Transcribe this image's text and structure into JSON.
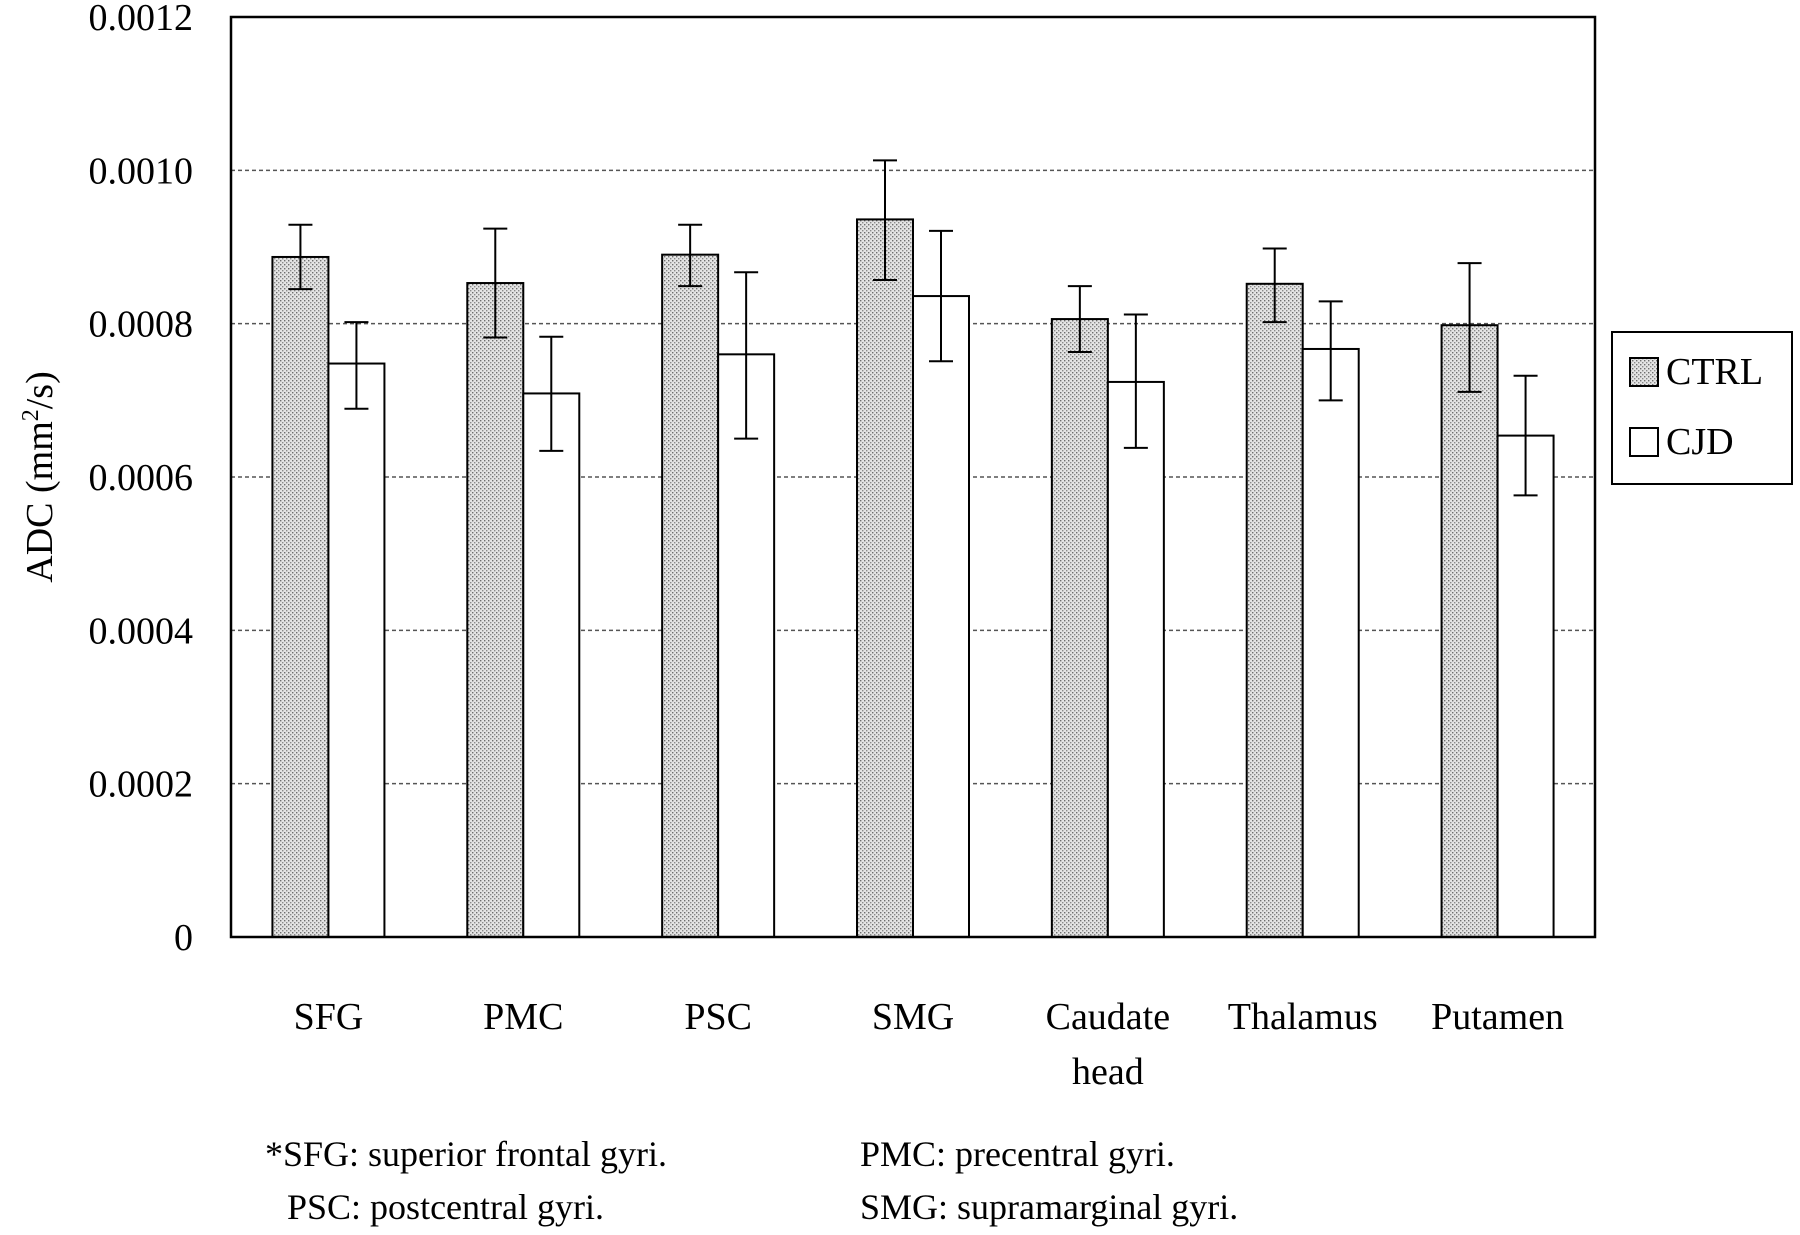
{
  "chart_data": {
    "type": "bar",
    "ylabel": {
      "prefix": "ADC (mm",
      "sup": "2",
      "suffix": "/s)"
    },
    "ylim": [
      0,
      0.0012
    ],
    "yticks": [
      "0",
      "0.0002",
      "0.0004",
      "0.0006",
      "0.0008",
      "0.0010",
      "0.0012"
    ],
    "ytick_values": [
      0,
      0.0002,
      0.0004,
      0.0006,
      0.0008,
      0.001,
      0.0012
    ],
    "grid": "horizontal dashed",
    "categories": [
      [
        "SFG"
      ],
      [
        "PMC"
      ],
      [
        "PSC"
      ],
      [
        "SMG"
      ],
      [
        "Caudate",
        "head"
      ],
      [
        "Thalamus"
      ],
      [
        "Putamen"
      ]
    ],
    "series": [
      {
        "name": "CTRL",
        "fill": "dotted",
        "values": [
          0.000887,
          0.000853,
          0.00089,
          0.000936,
          0.000806,
          0.000852,
          0.000798
        ],
        "err_low": [
          0.000845,
          0.000782,
          0.000849,
          0.000857,
          0.000763,
          0.000802,
          0.000711
        ],
        "err_high": [
          0.000929,
          0.000924,
          0.000929,
          0.001013,
          0.000849,
          0.000898,
          0.000879
        ]
      },
      {
        "name": "CJD",
        "fill": "#ffffff",
        "values": [
          0.000748,
          0.000709,
          0.00076,
          0.000836,
          0.000724,
          0.000767,
          0.000654
        ],
        "err_low": [
          0.000689,
          0.000634,
          0.00065,
          0.000751,
          0.000638,
          0.0007,
          0.000576
        ],
        "err_high": [
          0.000802,
          0.000783,
          0.000867,
          0.000921,
          0.000812,
          0.000829,
          0.000732
        ]
      }
    ],
    "legend": "right",
    "footnote": [
      [
        "*SFG: superior frontal gyri.",
        "PMC: precentral gyri."
      ],
      [
        "PSC: postcentral gyri.",
        "SMG: supramarginal gyri."
      ]
    ]
  }
}
